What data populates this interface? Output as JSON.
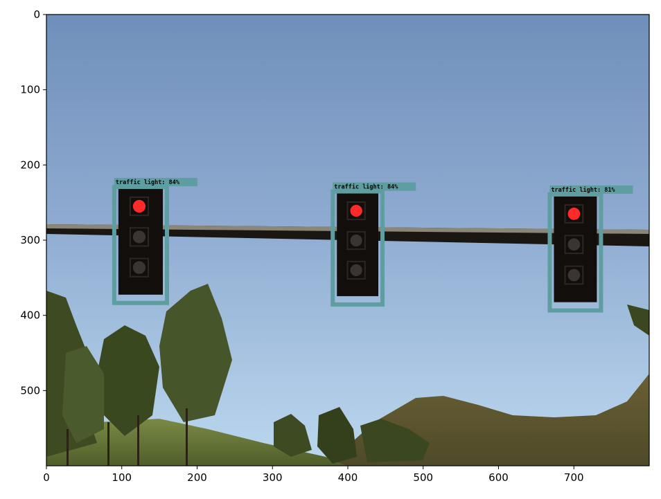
{
  "axes": {
    "x_ticks": [
      "0",
      "100",
      "200",
      "300",
      "400",
      "500",
      "600",
      "700"
    ],
    "y_ticks": [
      "0",
      "100",
      "200",
      "300",
      "400",
      "500"
    ],
    "x_range": [
      0,
      800
    ],
    "y_range": [
      0,
      600
    ]
  },
  "scene": {
    "sky_color_top": "#7090bb",
    "sky_color_bottom": "#b9d6ee",
    "box_color": "#5f9ea0",
    "red_light_color": "#ff2a2a"
  },
  "detections": [
    {
      "label": "traffic light: 84%",
      "xmin": 90,
      "ymin": 220,
      "xmax": 160,
      "ymax": 378,
      "lit": "red"
    },
    {
      "label": "traffic light: 84%",
      "xmin": 380,
      "ymin": 226,
      "xmax": 446,
      "ymax": 380,
      "lit": "red"
    },
    {
      "label": "traffic light: 81%",
      "xmin": 668,
      "ymin": 230,
      "xmax": 736,
      "ymax": 388,
      "lit": "red"
    }
  ]
}
